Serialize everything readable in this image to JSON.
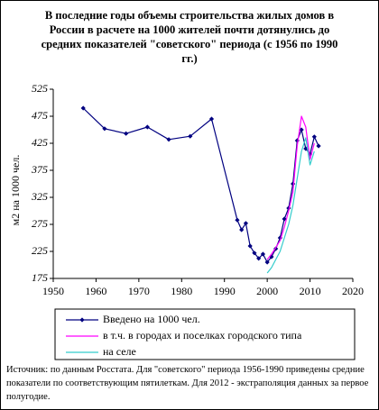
{
  "chart_data": {
    "type": "line",
    "title": "В последние годы объемы строительства жилых домов в России в расчете на 1000 жителей почти дотянулись до средних показателей \"советского\" периода (с 1956 по 1990 гг.)",
    "y_label": "м2 на 1000 чел.",
    "xlim": [
      1950,
      2020
    ],
    "xticks": [
      1950,
      1960,
      1970,
      1980,
      1990,
      2000,
      2010,
      2020
    ],
    "ylim": [
      175,
      525
    ],
    "yticks": [
      175,
      225,
      275,
      325,
      375,
      425,
      475,
      525
    ],
    "series": [
      {
        "name": "Введено на 1000 чел.",
        "color": "#000080",
        "marker": "diamond",
        "x": [
          1957,
          1962,
          1967,
          1972,
          1977,
          1982,
          1987,
          1993,
          1994,
          1995,
          1996,
          1997,
          1998,
          1999,
          2000,
          2001,
          2002,
          2003,
          2004,
          2005,
          2006,
          2007,
          2008,
          2009,
          2010,
          2011,
          2012
        ],
        "values": [
          490,
          452,
          443,
          455,
          432,
          438,
          470,
          283,
          265,
          277,
          235,
          222,
          212,
          220,
          205,
          215,
          230,
          250,
          285,
          305,
          350,
          430,
          450,
          415,
          405,
          437,
          420
        ]
      },
      {
        "name": "в т.ч. в городах и поселках городского типа",
        "color": "#ff00ff",
        "x": [
          2000,
          2001,
          2002,
          2003,
          2004,
          2005,
          2006,
          2007,
          2008,
          2009,
          2010,
          2011
        ],
        "values": [
          210,
          220,
          232,
          245,
          270,
          300,
          335,
          420,
          475,
          455,
          395,
          425
        ]
      },
      {
        "name": "на селе",
        "color": "#33cccc",
        "x": [
          2000,
          2001,
          2002,
          2003,
          2004,
          2005,
          2006,
          2007,
          2008,
          2009,
          2010,
          2011
        ],
        "values": [
          185,
          195,
          210,
          225,
          250,
          275,
          310,
          360,
          410,
          435,
          385,
          410
        ]
      }
    ],
    "note": "Источник: по данным Росстата. Для \"советского\" периода 1956-1990 приведены средние показатели по соответствующим пятилеткам. Для 2012 - экстраполяция данных за первое полугодие."
  }
}
